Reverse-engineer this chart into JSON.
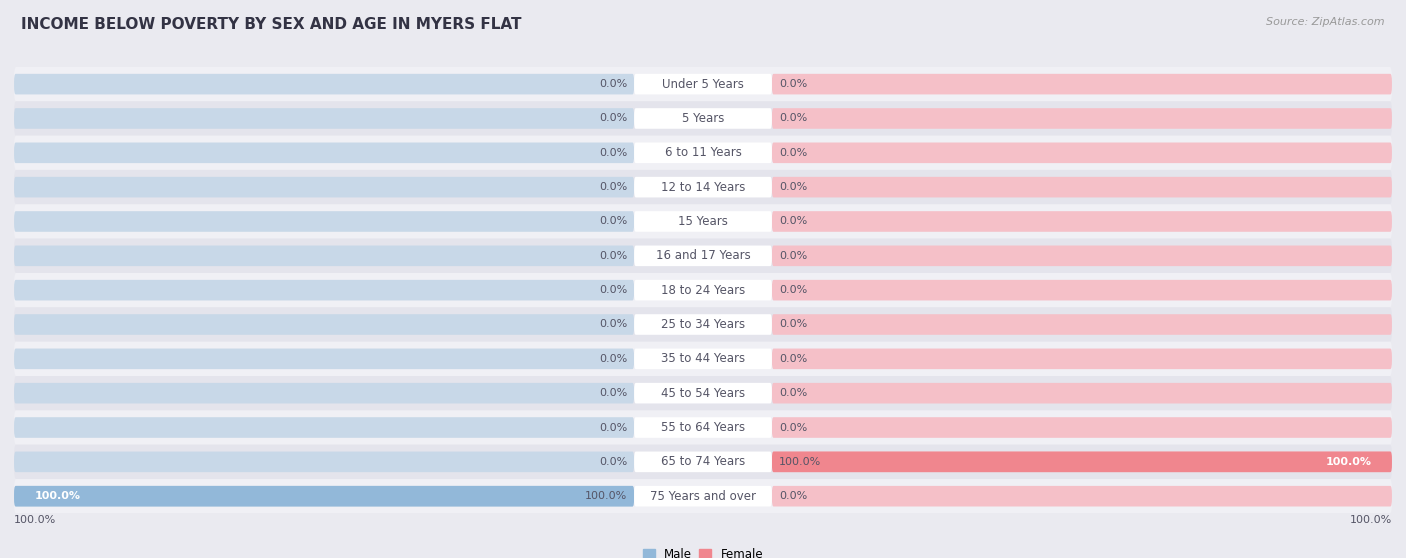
{
  "title": "INCOME BELOW POVERTY BY SEX AND AGE IN MYERS FLAT",
  "source": "Source: ZipAtlas.com",
  "categories": [
    "Under 5 Years",
    "5 Years",
    "6 to 11 Years",
    "12 to 14 Years",
    "15 Years",
    "16 and 17 Years",
    "18 to 24 Years",
    "25 to 34 Years",
    "35 to 44 Years",
    "45 to 54 Years",
    "55 to 64 Years",
    "65 to 74 Years",
    "75 Years and over"
  ],
  "male_values": [
    0.0,
    0.0,
    0.0,
    0.0,
    0.0,
    0.0,
    0.0,
    0.0,
    0.0,
    0.0,
    0.0,
    0.0,
    100.0
  ],
  "female_values": [
    0.0,
    0.0,
    0.0,
    0.0,
    0.0,
    0.0,
    0.0,
    0.0,
    0.0,
    0.0,
    0.0,
    100.0,
    0.0
  ],
  "male_color": "#92b8d9",
  "female_color": "#f0868e",
  "male_label": "Male",
  "female_label": "Female",
  "row_bg_light": "#f0f0f5",
  "row_bg_dark": "#e4e4ec",
  "bar_bg_male": "#c8d8e8",
  "bar_bg_female": "#f5c0c8",
  "label_color": "#555566",
  "value_color": "#555566",
  "max_value": 100.0,
  "min_bar_display": 8.0,
  "title_fontsize": 11,
  "label_fontsize": 8.5,
  "value_fontsize": 8,
  "title_color": "#333344",
  "source_color": "#999999",
  "background_color": "#eaeaf0"
}
